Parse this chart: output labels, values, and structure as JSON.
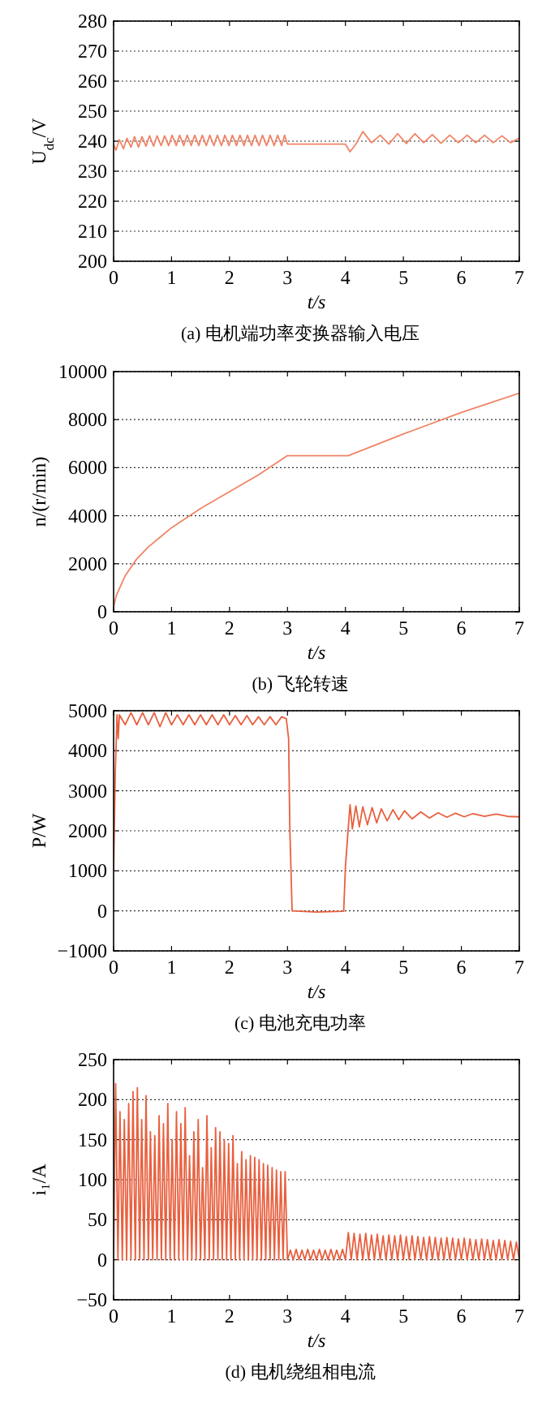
{
  "chart_data": [
    {
      "type": "line",
      "title": "(a) 电机端功率变换器输入电压",
      "xlabel": "t/s",
      "ylabel": "U$_{dc}$/V",
      "xlim": [
        0,
        7
      ],
      "xticks": [
        0,
        1,
        2,
        3,
        4,
        5,
        6,
        7
      ],
      "ylim": [
        200,
        280
      ],
      "yticks": [
        200,
        210,
        220,
        230,
        240,
        250,
        260,
        270,
        280
      ],
      "grid": "y",
      "series": [
        {
          "color": "#f08466",
          "x": [
            0,
            0.04,
            0.1,
            0.17,
            0.23,
            0.3,
            0.36,
            0.43,
            0.49,
            0.56,
            0.62,
            0.69,
            0.75,
            0.82,
            0.88,
            0.95,
            1.01,
            1.08,
            1.14,
            1.21,
            1.27,
            1.34,
            1.4,
            1.47,
            1.53,
            1.6,
            1.66,
            1.73,
            1.79,
            1.86,
            1.92,
            1.99,
            2.05,
            2.12,
            2.18,
            2.25,
            2.31,
            2.38,
            2.44,
            2.51,
            2.57,
            2.64,
            2.7,
            2.77,
            2.83,
            2.9,
            2.95,
            3.0,
            4.0,
            4.08,
            4.18,
            4.3,
            4.45,
            4.6,
            4.75,
            4.9,
            5.05,
            5.2,
            5.35,
            5.5,
            5.65,
            5.8,
            5.95,
            6.1,
            6.25,
            6.4,
            6.55,
            6.7,
            6.85,
            7.0
          ],
          "values": [
            239,
            237,
            240.5,
            237.5,
            241,
            238,
            241.5,
            238,
            241.5,
            238.3,
            241.8,
            238.3,
            241.8,
            238.5,
            241.8,
            238.5,
            242,
            238.5,
            242,
            238.5,
            242,
            238.5,
            242,
            238.5,
            242,
            238.5,
            242,
            238.5,
            242,
            238.5,
            242,
            238.5,
            242,
            238.5,
            242,
            238.5,
            242,
            238.5,
            242,
            238.5,
            242,
            238.5,
            242,
            238.5,
            242,
            238.5,
            242,
            239,
            239,
            236.5,
            239,
            243.2,
            239.5,
            242,
            239,
            242.5,
            239.2,
            242.5,
            239.5,
            242.2,
            239.3,
            242,
            239.5,
            242,
            239.5,
            242,
            239.5,
            241.8,
            239.5,
            241
          ]
        }
      ]
    },
    {
      "type": "line",
      "title": "(b) 飞轮转速",
      "xlabel": "t/s",
      "ylabel": "n/(r/min)",
      "xlim": [
        0,
        7
      ],
      "xticks": [
        0,
        1,
        2,
        3,
        4,
        5,
        6,
        7
      ],
      "ylim": [
        0,
        10000
      ],
      "yticks": [
        0,
        2000,
        4000,
        6000,
        8000,
        10000
      ],
      "grid": "y",
      "series": [
        {
          "color": "#f08466",
          "x": [
            0,
            0.05,
            0.2,
            0.4,
            0.6,
            0.8,
            1,
            1.5,
            2,
            2.5,
            3,
            4.05,
            5,
            6,
            7
          ],
          "values": [
            200,
            700,
            1500,
            2200,
            2700,
            3100,
            3500,
            4300,
            5000,
            5700,
            6500,
            6500,
            7400,
            8300,
            9100
          ]
        }
      ]
    },
    {
      "type": "line",
      "title": "(c) 电池充电功率",
      "xlabel": "t/s",
      "ylabel": "P/W",
      "xlim": [
        0,
        7
      ],
      "xticks": [
        0,
        1,
        2,
        3,
        4,
        5,
        6,
        7
      ],
      "ylim": [
        -1000,
        5000
      ],
      "yticks": [
        {
          "value": -1000,
          "label": "−1000"
        },
        0,
        1000,
        2000,
        3000,
        4000,
        5000
      ],
      "grid": "y",
      "series": [
        {
          "color": "#e8603f",
          "x": [
            0,
            0.03,
            0.06,
            0.08,
            0.1,
            0.2,
            0.3,
            0.4,
            0.5,
            0.6,
            0.7,
            0.8,
            0.9,
            1.0,
            1.1,
            1.2,
            1.3,
            1.4,
            1.5,
            1.6,
            1.7,
            1.8,
            1.9,
            2.0,
            2.1,
            2.2,
            2.3,
            2.4,
            2.5,
            2.6,
            2.7,
            2.8,
            2.9,
            2.98,
            3.02,
            3.04,
            3.08,
            3.5,
            3.97,
            4.0,
            4.04,
            4.08,
            4.12,
            4.18,
            4.24,
            4.3,
            4.38,
            4.46,
            4.54,
            4.62,
            4.72,
            4.82,
            4.92,
            5.02,
            5.15,
            5.3,
            5.45,
            5.6,
            5.75,
            5.9,
            6.05,
            6.2,
            6.4,
            6.6,
            6.8,
            7.0
          ],
          "values": [
            1000,
            3500,
            4900,
            4300,
            4900,
            4650,
            4950,
            4650,
            4950,
            4650,
            4950,
            4600,
            4950,
            4650,
            4900,
            4650,
            4900,
            4650,
            4900,
            4650,
            4900,
            4650,
            4900,
            4650,
            4880,
            4650,
            4880,
            4650,
            4850,
            4650,
            4850,
            4650,
            4850,
            4800,
            4300,
            2100,
            0,
            -30,
            -10,
            1100,
            1900,
            2650,
            2050,
            2620,
            2100,
            2600,
            2150,
            2580,
            2200,
            2550,
            2250,
            2530,
            2280,
            2500,
            2300,
            2470,
            2320,
            2450,
            2340,
            2440,
            2350,
            2430,
            2360,
            2420,
            2360,
            2350
          ]
        }
      ]
    },
    {
      "type": "line",
      "title": "(d) 电机绕组相电流",
      "xlabel": "t/s",
      "ylabel": "i₁/A",
      "xlim": [
        0,
        7
      ],
      "xticks": [
        0,
        1,
        2,
        3,
        4,
        5,
        6,
        7
      ],
      "ylim": [
        -50,
        250
      ],
      "yticks": [
        {
          "value": -50,
          "label": "−50"
        },
        0,
        50,
        100,
        150,
        200,
        250
      ],
      "grid": "y",
      "series": [
        {
          "color": "#e8603f",
          "x": [
            0,
            0.035,
            0.075,
            0.11,
            0.15,
            0.185,
            0.225,
            0.26,
            0.3,
            0.335,
            0.375,
            0.41,
            0.45,
            0.485,
            0.525,
            0.56,
            0.6,
            0.635,
            0.675,
            0.71,
            0.75,
            0.785,
            0.825,
            0.86,
            0.9,
            0.935,
            0.975,
            1.01,
            1.05,
            1.085,
            1.125,
            1.16,
            1.2,
            1.235,
            1.275,
            1.31,
            1.35,
            1.385,
            1.425,
            1.46,
            1.5,
            1.535,
            1.575,
            1.61,
            1.65,
            1.685,
            1.725,
            1.76,
            1.8,
            1.835,
            1.875,
            1.91,
            1.95,
            1.985,
            2.025,
            2.06,
            2.1,
            2.135,
            2.175,
            2.21,
            2.25,
            2.285,
            2.325,
            2.36,
            2.4,
            2.435,
            2.475,
            2.51,
            2.55,
            2.585,
            2.625,
            2.66,
            2.7,
            2.735,
            2.775,
            2.81,
            2.85,
            2.885,
            2.925,
            2.96,
            3.0,
            3.05,
            3.1,
            3.15,
            3.2,
            3.25,
            3.3,
            3.35,
            3.4,
            3.45,
            3.5,
            3.55,
            3.6,
            3.65,
            3.7,
            3.75,
            3.8,
            3.85,
            3.9,
            3.95,
            4.0,
            4.05,
            4.1,
            4.15,
            4.2,
            4.25,
            4.3,
            4.35,
            4.4,
            4.45,
            4.5,
            4.55,
            4.6,
            4.65,
            4.7,
            4.75,
            4.8,
            4.85,
            4.9,
            4.95,
            5.0,
            5.05,
            5.1,
            5.15,
            5.2,
            5.25,
            5.3,
            5.35,
            5.4,
            5.45,
            5.5,
            5.55,
            5.6,
            5.65,
            5.7,
            5.75,
            5.8,
            5.85,
            5.9,
            5.95,
            6.0,
            6.05,
            6.1,
            6.15,
            6.2,
            6.25,
            6.3,
            6.35,
            6.4,
            6.45,
            6.5,
            6.55,
            6.6,
            6.65,
            6.7,
            6.75,
            6.8,
            6.85,
            6.9,
            6.95,
            7.0
          ],
          "values": [
            0,
            220,
            0,
            185,
            0,
            175,
            0,
            195,
            0,
            210,
            0,
            215,
            0,
            175,
            0,
            205,
            0,
            160,
            0,
            155,
            0,
            180,
            0,
            170,
            0,
            195,
            0,
            150,
            0,
            185,
            0,
            170,
            0,
            190,
            0,
            130,
            0,
            160,
            0,
            175,
            0,
            115,
            0,
            180,
            0,
            140,
            0,
            165,
            0,
            160,
            0,
            150,
            0,
            145,
            0,
            155,
            0,
            120,
            0,
            135,
            0,
            125,
            0,
            130,
            0,
            128,
            0,
            125,
            0,
            120,
            0,
            118,
            0,
            115,
            0,
            112,
            0,
            110,
            0,
            110,
            0,
            12,
            0,
            13,
            0,
            12,
            0,
            13,
            0,
            12,
            0,
            13,
            0,
            12,
            0,
            13,
            0,
            12,
            0,
            13,
            0,
            34,
            0,
            33,
            0,
            32,
            0,
            33,
            0,
            31,
            0,
            32,
            0,
            30,
            0,
            31,
            0,
            30,
            0,
            31,
            0,
            29,
            0,
            30,
            0,
            29,
            0,
            28,
            0,
            29,
            0,
            28,
            0,
            27,
            0,
            28,
            0,
            27,
            0,
            26,
            0,
            27,
            0,
            26,
            0,
            25,
            0,
            26,
            0,
            25,
            0,
            24,
            0,
            25,
            0,
            24,
            0,
            23,
            0,
            22,
            0
          ]
        }
      ]
    }
  ]
}
